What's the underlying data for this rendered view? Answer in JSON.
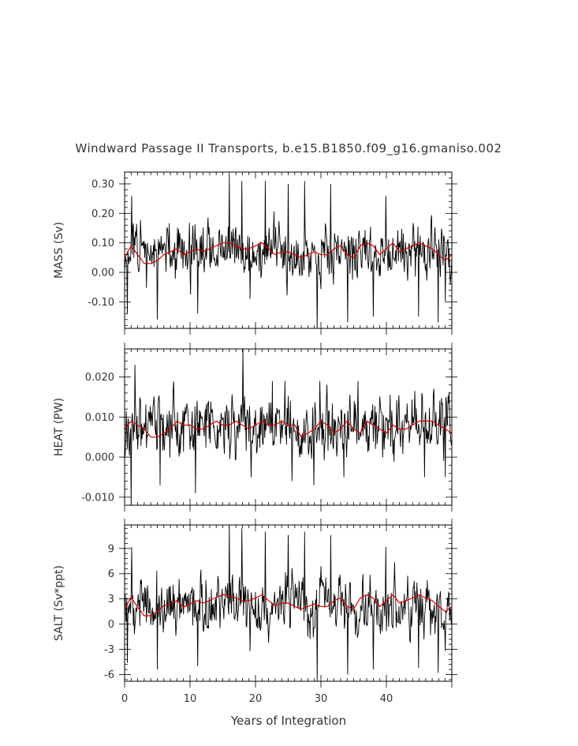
{
  "figure": {
    "title": "Windward Passage II Transports, b.e15.B1850.f09_g16.gmaniso.002",
    "xlabel": "Years of Integration"
  },
  "chart_data": [
    {
      "type": "line",
      "ylabel": "MASS (Sv)",
      "xlim": [
        0,
        50
      ],
      "ylim": [
        -0.19,
        0.34
      ],
      "yticks": [
        "0.30",
        "0.20",
        "0.10",
        "0.00",
        "-0.10"
      ],
      "ytick_values": [
        0.3,
        0.2,
        0.1,
        0.0,
        -0.1
      ],
      "series": [
        {
          "color": "#000000",
          "mean": 0.07,
          "spread": 0.045,
          "min": -0.19,
          "max": 0.34,
          "seed": 11,
          "spikes": [
            [
              0.4,
              -0.14
            ],
            [
              1.1,
              0.26
            ],
            [
              5.0,
              -0.16
            ],
            [
              11.2,
              -0.14
            ],
            [
              16.0,
              0.33
            ],
            [
              17.9,
              0.31
            ],
            [
              19.2,
              -0.09
            ],
            [
              21.5,
              0.31
            ],
            [
              25.0,
              0.3
            ],
            [
              27.5,
              0.31
            ],
            [
              29.4,
              -0.19
            ],
            [
              31.5,
              0.3
            ],
            [
              34.1,
              -0.17
            ],
            [
              38.0,
              -0.15
            ],
            [
              39.9,
              0.26
            ],
            [
              44.9,
              -0.15
            ],
            [
              47.9,
              -0.17
            ],
            [
              49.0,
              -0.1
            ]
          ]
        },
        {
          "color": "#d40000",
          "values_by_year": [
            0.05,
            0.09,
            0.06,
            0.03,
            0.03,
            0.04,
            0.06,
            0.07,
            0.08,
            0.06,
            0.07,
            0.08,
            0.07,
            0.08,
            0.09,
            0.1,
            0.1,
            0.09,
            0.08,
            0.08,
            0.09,
            0.1,
            0.08,
            0.06,
            0.07,
            0.07,
            0.06,
            0.05,
            0.06,
            0.07,
            0.06,
            0.06,
            0.08,
            0.09,
            0.06,
            0.05,
            0.09,
            0.1,
            0.09,
            0.06,
            0.08,
            0.1,
            0.07,
            0.08,
            0.09,
            0.1,
            0.09,
            0.08,
            0.06,
            0.04,
            0.06
          ]
        }
      ]
    },
    {
      "type": "line",
      "ylabel": "HEAT (PW)",
      "xlim": [
        0,
        50
      ],
      "ylim": [
        -0.012,
        0.027
      ],
      "yticks": [
        "0.020",
        "0.010",
        "0.000",
        "-0.010"
      ],
      "ytick_values": [
        0.02,
        0.01,
        0.0,
        -0.01
      ],
      "series": [
        {
          "color": "#000000",
          "mean": 0.0075,
          "spread": 0.0035,
          "min": -0.012,
          "max": 0.027,
          "seed": 23,
          "spikes": [
            [
              1.0,
              -0.012
            ],
            [
              1.6,
              0.023
            ],
            [
              5.4,
              -0.007
            ],
            [
              10.8,
              -0.009
            ],
            [
              18.1,
              0.027
            ],
            [
              19.3,
              -0.005
            ],
            [
              22.6,
              0.019
            ],
            [
              24.5,
              0.019
            ],
            [
              25.6,
              -0.006
            ],
            [
              28.9,
              -0.007
            ],
            [
              29.8,
              0.019
            ],
            [
              33.5,
              -0.005
            ],
            [
              35.7,
              0.019
            ],
            [
              45.8,
              -0.005
            ],
            [
              49.0,
              -0.005
            ]
          ]
        },
        {
          "color": "#d40000",
          "values_by_year": [
            0.007,
            0.009,
            0.008,
            0.007,
            0.005,
            0.005,
            0.006,
            0.007,
            0.009,
            0.008,
            0.008,
            0.007,
            0.007,
            0.008,
            0.009,
            0.008,
            0.008,
            0.009,
            0.008,
            0.007,
            0.008,
            0.009,
            0.008,
            0.008,
            0.009,
            0.008,
            0.008,
            0.005,
            0.006,
            0.007,
            0.009,
            0.008,
            0.006,
            0.007,
            0.009,
            0.007,
            0.006,
            0.009,
            0.008,
            0.007,
            0.006,
            0.008,
            0.007,
            0.007,
            0.008,
            0.009,
            0.009,
            0.009,
            0.008,
            0.007,
            0.006
          ]
        }
      ]
    },
    {
      "type": "line",
      "ylabel": "SALT (Sv*ppt)",
      "xlim": [
        0,
        50
      ],
      "ylim": [
        -6.8,
        11.8
      ],
      "yticks": [
        "9",
        "6",
        "3",
        "0",
        "-3",
        "-6"
      ],
      "ytick_values": [
        9,
        6,
        3,
        0,
        -3,
        -6
      ],
      "series": [
        {
          "color": "#000000",
          "mean": 2.3,
          "spread": 1.6,
          "min": -6.8,
          "max": 11.8,
          "seed": 37,
          "spikes": [
            [
              0.4,
              -4.6
            ],
            [
              1.1,
              9.2
            ],
            [
              5.0,
              -5.4
            ],
            [
              11.2,
              -5.0
            ],
            [
              16.0,
              11.8
            ],
            [
              17.9,
              11.4
            ],
            [
              19.2,
              -3.2
            ],
            [
              21.5,
              11.0
            ],
            [
              25.0,
              10.6
            ],
            [
              27.5,
              11.0
            ],
            [
              29.4,
              -6.8
            ],
            [
              31.5,
              10.6
            ],
            [
              34.1,
              -6.0
            ],
            [
              38.0,
              -5.4
            ],
            [
              39.9,
              9.2
            ],
            [
              44.9,
              -5.2
            ],
            [
              47.9,
              -5.8
            ],
            [
              49.0,
              -3.2
            ]
          ]
        },
        {
          "color": "#d40000",
          "values_by_year": [
            1.8,
            3.2,
            2.0,
            1.0,
            1.0,
            1.5,
            2.2,
            2.4,
            2.8,
            2.0,
            2.4,
            2.8,
            2.5,
            2.8,
            3.2,
            3.5,
            3.4,
            3.1,
            2.8,
            2.8,
            3.1,
            3.5,
            2.8,
            2.2,
            2.5,
            2.5,
            2.1,
            1.8,
            2.1,
            2.4,
            2.1,
            2.1,
            2.8,
            3.1,
            2.1,
            1.8,
            3.1,
            3.5,
            3.1,
            2.1,
            2.8,
            3.5,
            2.5,
            2.8,
            3.1,
            3.5,
            3.1,
            2.8,
            2.1,
            1.5,
            2.1
          ]
        }
      ]
    }
  ],
  "xaxis": {
    "ticks": [
      "0",
      "10",
      "20",
      "30",
      "40"
    ],
    "tick_values": [
      0,
      10,
      20,
      30,
      40
    ]
  }
}
